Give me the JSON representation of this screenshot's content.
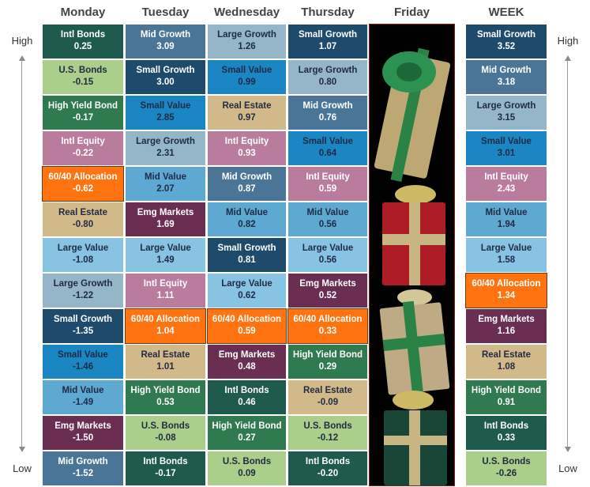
{
  "colors": {
    "Intl Bonds": "#1e5a4e",
    "U.S. Bonds": "#a9cf8a",
    "High Yield Bond": "#2f7a4f",
    "Intl Equity": "#b97c9c",
    "60/40 Allocation": "#ff7410",
    "Real Estate": "#d2b98a",
    "Large Value": "#87c3e2",
    "Large Growth": "#94b6c8",
    "Small Growth": "#1e4a6c",
    "Small Value": "#1a86c4",
    "Mid Value": "#5ea9d1",
    "Emg Markets": "#6a2e52",
    "Mid Growth": "#4a7596"
  },
  "dark_text_categories": [
    "U.S. Bonds",
    "Real Estate",
    "Large Value",
    "Large Growth",
    "Small Value",
    "Mid Value"
  ],
  "side_labels": {
    "high": "High",
    "low": "Low"
  },
  "friday_image": "holiday-gift-boxes",
  "chart_data": {
    "type": "table",
    "columns": [
      {
        "name": "Monday",
        "cells": [
          [
            "Intl Bonds",
            "0.25"
          ],
          [
            "U.S. Bonds",
            "-0.15"
          ],
          [
            "High Yield Bond",
            "-0.17"
          ],
          [
            "Intl Equity",
            "-0.22"
          ],
          [
            "60/40 Allocation",
            "-0.62"
          ],
          [
            "Real Estate",
            "-0.80"
          ],
          [
            "Large Value",
            "-1.08"
          ],
          [
            "Large Growth",
            "-1.22"
          ],
          [
            "Small Growth",
            "-1.35"
          ],
          [
            "Small Value",
            "-1.46"
          ],
          [
            "Mid Value",
            "-1.49"
          ],
          [
            "Emg Markets",
            "-1.50"
          ],
          [
            "Mid Growth",
            "-1.52"
          ]
        ]
      },
      {
        "name": "Tuesday",
        "cells": [
          [
            "Mid Growth",
            "3.09"
          ],
          [
            "Small Growth",
            "3.00"
          ],
          [
            "Small Value",
            "2.85"
          ],
          [
            "Large Growth",
            "2.31"
          ],
          [
            "Mid Value",
            "2.07"
          ],
          [
            "Emg Markets",
            "1.69"
          ],
          [
            "Large Value",
            "1.49"
          ],
          [
            "Intl Equity",
            "1.11"
          ],
          [
            "60/40 Allocation",
            "1.04"
          ],
          [
            "Real Estate",
            "1.01"
          ],
          [
            "High Yield Bond",
            "0.53"
          ],
          [
            "U.S. Bonds",
            "-0.08"
          ],
          [
            "Intl Bonds",
            "-0.17"
          ]
        ]
      },
      {
        "name": "Wednesday",
        "cells": [
          [
            "Large Growth",
            "1.26"
          ],
          [
            "Small Value",
            "0.99"
          ],
          [
            "Real Estate",
            "0.97"
          ],
          [
            "Intl Equity",
            "0.93"
          ],
          [
            "Mid Growth",
            "0.87"
          ],
          [
            "Mid Value",
            "0.82"
          ],
          [
            "Small Growth",
            "0.81"
          ],
          [
            "Large Value",
            "0.62"
          ],
          [
            "60/40 Allocation",
            "0.59"
          ],
          [
            "Emg Markets",
            "0.48"
          ],
          [
            "Intl Bonds",
            "0.46"
          ],
          [
            "High Yield Bond",
            "0.27"
          ],
          [
            "U.S. Bonds",
            "0.09"
          ]
        ]
      },
      {
        "name": "Thursday",
        "cells": [
          [
            "Small Growth",
            "1.07"
          ],
          [
            "Large Growth",
            "0.80"
          ],
          [
            "Mid Growth",
            "0.76"
          ],
          [
            "Small Value",
            "0.64"
          ],
          [
            "Intl Equity",
            "0.59"
          ],
          [
            "Mid Value",
            "0.56"
          ],
          [
            "Large Value",
            "0.56"
          ],
          [
            "Emg Markets",
            "0.52"
          ],
          [
            "60/40 Allocation",
            "0.33"
          ],
          [
            "High Yield Bond",
            "0.29"
          ],
          [
            "Real Estate",
            "-0.09"
          ],
          [
            "U.S. Bonds",
            "-0.12"
          ],
          [
            "Intl Bonds",
            "-0.20"
          ]
        ]
      },
      {
        "name": "Friday",
        "cells": []
      },
      {
        "name": "WEEK",
        "cells": [
          [
            "Small Growth",
            "3.52"
          ],
          [
            "Mid Growth",
            "3.18"
          ],
          [
            "Large Growth",
            "3.15"
          ],
          [
            "Small Value",
            "3.01"
          ],
          [
            "Intl Equity",
            "2.43"
          ],
          [
            "Mid Value",
            "1.94"
          ],
          [
            "Large Value",
            "1.58"
          ],
          [
            "60/40 Allocation",
            "1.34"
          ],
          [
            "Emg Markets",
            "1.16"
          ],
          [
            "Real Estate",
            "1.08"
          ],
          [
            "High Yield Bond",
            "0.91"
          ],
          [
            "Intl Bonds",
            "0.33"
          ],
          [
            "U.S. Bonds",
            "-0.26"
          ]
        ]
      }
    ]
  }
}
